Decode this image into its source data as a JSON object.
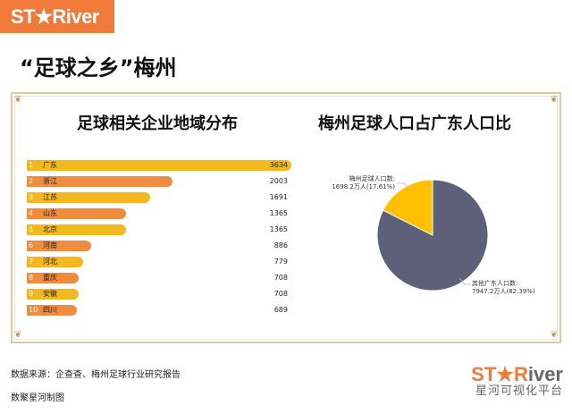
{
  "logo": "ST★River",
  "title": "“足球之乡”梅州",
  "chart_data": [
    {
      "type": "bar",
      "orientation": "horizontal",
      "title": "足球相关企业地域分布",
      "categories": [
        "广东",
        "浙江",
        "江苏",
        "山东",
        "北京",
        "河南",
        "河北",
        "重庆",
        "安徽",
        "四川"
      ],
      "ranks": [
        "1",
        "2",
        "3",
        "4",
        "5",
        "6",
        "7",
        "8",
        "9",
        "10"
      ],
      "values": [
        3634,
        2003,
        1691,
        1365,
        1365,
        886,
        779,
        708,
        708,
        689
      ],
      "colors": [
        "#F2B81E",
        "#F08C3E"
      ]
    },
    {
      "type": "pie",
      "title": "梅州足球人口占广东人口比",
      "slices": [
        {
          "label": "梅州足球人口数:",
          "value": 1698.2,
          "text": "1698.2万人(17.61%)",
          "percent": 17.61,
          "color": "#FFC000"
        },
        {
          "label": "其他广东人口数:",
          "value": 7947.2,
          "text": "7947.2万人(82.39%)",
          "percent": 82.39,
          "color": "#5E6079"
        }
      ]
    }
  ],
  "footer": {
    "source": "数据来源：企查查、梅州足球行业研究报告",
    "credit": "数聚星河制图",
    "logo_st": "ST★R",
    "logo_iver": "iver",
    "logo_sub": "星河可视化平台"
  }
}
